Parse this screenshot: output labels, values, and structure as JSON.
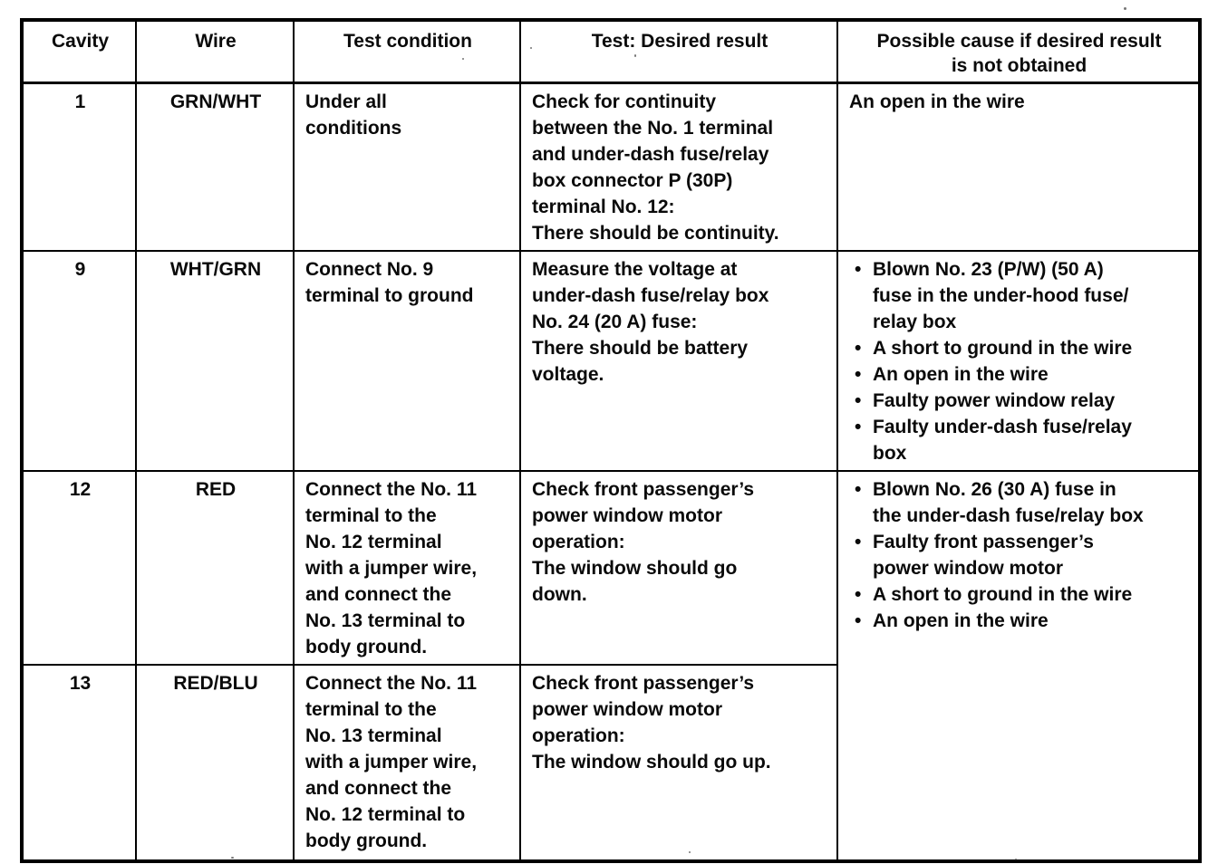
{
  "page": {
    "background": "#ffffff",
    "text_color": "#0a0a0a",
    "border_color": "#000000"
  },
  "table": {
    "headers": [
      "Cavity",
      "Wire",
      "Test condition",
      "Test: Desired result",
      "Possible cause if desired result\nis not obtained"
    ],
    "rows": [
      {
        "cavity": "1",
        "wire": "GRN/WHT",
        "condition": "Under all\nconditions",
        "result": "Check for continuity\nbetween the No. 1 terminal\nand under-dash fuse/relay\nbox connector P (30P)\nterminal No. 12:\nThere should be continuity.",
        "cause_text": "An open in the wire",
        "causes": []
      },
      {
        "cavity": "9",
        "wire": "WHT/GRN",
        "condition": "Connect No. 9\nterminal to ground",
        "result": "Measure the voltage at\nunder-dash fuse/relay box\nNo. 24 (20 A) fuse:\nThere should be battery\nvoltage.",
        "causes": [
          "Blown No. 23 (P/W) (50 A)\nfuse in the under-hood fuse/\nrelay box",
          "A short to ground in the wire",
          "An open in the wire",
          "Faulty power window relay",
          "Faulty under-dash fuse/relay\nbox"
        ]
      },
      {
        "cavity": "12",
        "wire": "RED",
        "condition": "Connect the No. 11\nterminal to the\nNo. 12 terminal\nwith a jumper wire,\nand connect the\nNo. 13 terminal to\nbody ground.",
        "result": "Check front passenger’s\npower window motor\noperation:\nThe window should go\ndown.",
        "causes": [
          "Blown No. 26 (30 A) fuse in\nthe under-dash fuse/relay box",
          "Faulty front passenger’s\npower window motor",
          "A short to ground in the wire",
          "An open in the wire"
        ]
      },
      {
        "cavity": "13",
        "wire": "RED/BLU",
        "condition": "Connect the No. 11\nterminal to the\nNo. 13 terminal\nwith a jumper wire,\nand connect the\nNo. 12 terminal to\nbody ground.",
        "result": "Check front passenger’s\npower window motor\noperation:\nThe window should go up.",
        "causes": []
      }
    ]
  }
}
